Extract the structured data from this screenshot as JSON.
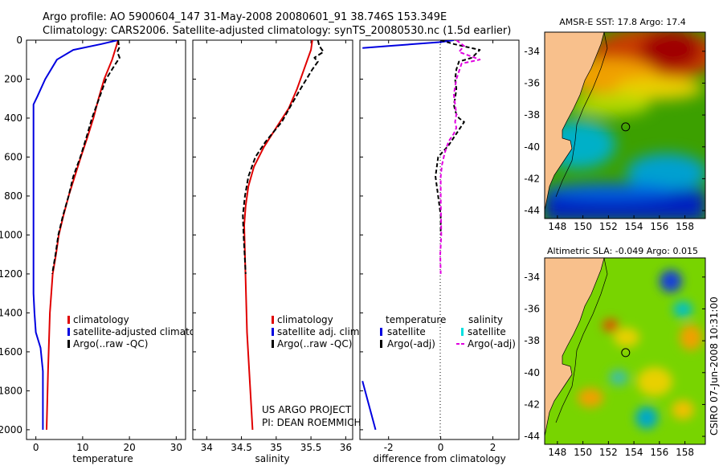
{
  "header": {
    "line1": "Argo profile: AO 5900604_147 31-May-2008 20080601_91 38.746S 153.349E",
    "line2": "Climatology: CARS2006. Satellite-adjusted climatology: synTS_20080530.nc (1.5d earlier)"
  },
  "credits": {
    "project": "US ARGO PROJECT",
    "pi": "PI: DEAN ROEMMICH",
    "stamp": "CSIRO 07-Jun-2008 10:31:00"
  },
  "colors": {
    "climatology": "#e00000",
    "satellite": "#0000e0",
    "argo": "#000000",
    "salinity_satellite": "#00e0e0",
    "argo_adj_sal": "#e000e0",
    "land": "#f8c08c"
  },
  "chart_data": [
    {
      "type": "line",
      "panel": "temperature",
      "xlabel": "temperature",
      "ylabel": "",
      "xlim": [
        -2,
        32
      ],
      "ylim": [
        2050,
        0
      ],
      "xticks": [
        0,
        10,
        20,
        30
      ],
      "yticks": [
        0,
        200,
        400,
        600,
        800,
        1000,
        1200,
        1400,
        1600,
        1800,
        2000
      ],
      "legend_position": "lower-right",
      "series": [
        {
          "name": "climatology",
          "color": "#e00000",
          "x": [
            17.6,
            16.3,
            14.6,
            13.4,
            12.3,
            11.0,
            9.6,
            8.3,
            7.0,
            5.9,
            4.9,
            4.3,
            3.6,
            3.0,
            2.6,
            2.3
          ],
          "y": [
            0,
            100,
            200,
            300,
            400,
            500,
            600,
            700,
            800,
            900,
            1000,
            1100,
            1200,
            1400,
            1700,
            2000
          ]
        },
        {
          "name": "satellite-adjusted climatology",
          "color": "#0000e0",
          "x": [
            17.5,
            14.0,
            8.0,
            4.5,
            2.0,
            0.3,
            -0.5,
            -0.5,
            -0.3,
            0.0,
            1.0,
            1.5,
            1.5
          ],
          "y": [
            0,
            20,
            50,
            100,
            200,
            290,
            330,
            1300,
            1400,
            1500,
            1580,
            1700,
            2000
          ]
        },
        {
          "name": "Argo(..raw -QC)",
          "color": "#000000",
          "dash": "6,3",
          "x": [
            17.6,
            17.8,
            17.4,
            17.9,
            16.8,
            15.0,
            13.5,
            12.0,
            10.8,
            9.5,
            8.0,
            7.0,
            5.8,
            4.8,
            4.2,
            3.5
          ],
          "y": [
            0,
            40,
            60,
            90,
            130,
            200,
            300,
            400,
            500,
            600,
            700,
            800,
            900,
            1000,
            1100,
            1200
          ]
        }
      ]
    },
    {
      "type": "line",
      "panel": "salinity",
      "xlabel": "salinity",
      "xlim": [
        33.8,
        36.1
      ],
      "ylim": [
        2050,
        0
      ],
      "xticks": [
        34,
        34.5,
        35,
        35.5,
        36
      ],
      "xtick_labels": [
        "34",
        "34.5",
        "35",
        "35.5",
        "36"
      ],
      "legend_position": "lower-right",
      "series": [
        {
          "name": "climatology",
          "color": "#e00000",
          "x": [
            35.52,
            35.5,
            35.4,
            35.3,
            35.18,
            35.0,
            34.82,
            34.68,
            34.6,
            34.56,
            34.54,
            34.55,
            34.58,
            34.66
          ],
          "y": [
            0,
            50,
            150,
            250,
            350,
            450,
            550,
            650,
            750,
            850,
            950,
            1100,
            1500,
            2000
          ]
        },
        {
          "name": "Argo(..raw -QC)",
          "color": "#000000",
          "dash": "6,3",
          "x": [
            35.6,
            35.62,
            35.68,
            35.55,
            35.6,
            35.52,
            35.35,
            35.22,
            35.08,
            34.85,
            34.7,
            34.6,
            34.55,
            34.52,
            34.53,
            34.56
          ],
          "y": [
            0,
            30,
            60,
            90,
            110,
            150,
            250,
            330,
            420,
            520,
            600,
            700,
            800,
            900,
            1000,
            1200
          ]
        }
      ]
    },
    {
      "type": "line",
      "panel": "difference",
      "xlabel": "difference from climatology",
      "xlim": [
        -3.1,
        3.0
      ],
      "ylim": [
        2050,
        0
      ],
      "xticks": [
        -2,
        0,
        2
      ],
      "legend_position": "lower-right",
      "legend_headers": [
        "temperature",
        "salinity"
      ],
      "legend_entries": [
        "satellite",
        "Argo(-adj)",
        "satellite",
        "Argo(-adj)"
      ],
      "series": [
        {
          "name": "satellite",
          "quantity": "temperature",
          "color": "#0000e0",
          "x": [
            0.5,
            0.0,
            -1.0,
            -2.0,
            -3.0
          ],
          "y": [
            0,
            10,
            20,
            30,
            40
          ],
          "x2": [
            -3.0,
            -2.8,
            -2.5
          ],
          "y2": [
            1750,
            1850,
            2000
          ]
        },
        {
          "name": "Argo(-adj)",
          "quantity": "temperature",
          "color": "#000000",
          "dash": "5,3",
          "x": [
            0.0,
            0.5,
            1.5,
            1.2,
            0.7,
            0.6,
            0.55,
            0.6,
            0.55,
            0.5,
            0.55,
            0.6,
            0.7,
            0.9,
            0.6,
            0.3,
            -0.1,
            -0.2,
            -0.1,
            0.0,
            0.0
          ],
          "y": [
            0,
            20,
            50,
            90,
            110,
            150,
            200,
            250,
            300,
            330,
            360,
            380,
            400,
            420,
            480,
            540,
            600,
            700,
            800,
            900,
            1000
          ]
        },
        {
          "name": "Argo(-adj)",
          "quantity": "salinity",
          "color": "#e000e0",
          "dash": "5,3",
          "x": [
            0.6,
            0.9,
            0.7,
            1.5,
            0.8,
            0.6,
            0.5,
            0.55,
            0.6,
            0.55,
            0.6,
            0.5,
            0.3,
            0.15,
            0.05,
            0.0,
            0.0,
            0.02,
            -0.02,
            0.0
          ],
          "y": [
            0,
            30,
            60,
            100,
            120,
            200,
            280,
            330,
            380,
            420,
            450,
            480,
            520,
            580,
            640,
            700,
            800,
            1000,
            1100,
            1200
          ]
        }
      ]
    },
    {
      "type": "heatmap",
      "panel": "map-sst",
      "title": "AMSR-E SST: 17.8 Argo: 17.4",
      "xlim": [
        147,
        159.6
      ],
      "ylim": [
        -44.5,
        -32.8
      ],
      "xticks": [
        148,
        150,
        152,
        154,
        156,
        158
      ],
      "yticks": [
        -34,
        -36,
        -38,
        -40,
        -42,
        -44
      ],
      "marker": {
        "lon": 153.349,
        "lat": -38.746
      }
    },
    {
      "type": "heatmap",
      "panel": "map-sla",
      "title": "Altimetric SLA: -0.049 Argo: 0.015",
      "xlim": [
        147,
        159.6
      ],
      "ylim": [
        -44.5,
        -32.8
      ],
      "xticks": [
        148,
        150,
        152,
        154,
        156,
        158
      ],
      "yticks": [
        -34,
        -36,
        -38,
        -40,
        -42,
        -44
      ],
      "marker": {
        "lon": 153.349,
        "lat": -38.746
      }
    }
  ]
}
